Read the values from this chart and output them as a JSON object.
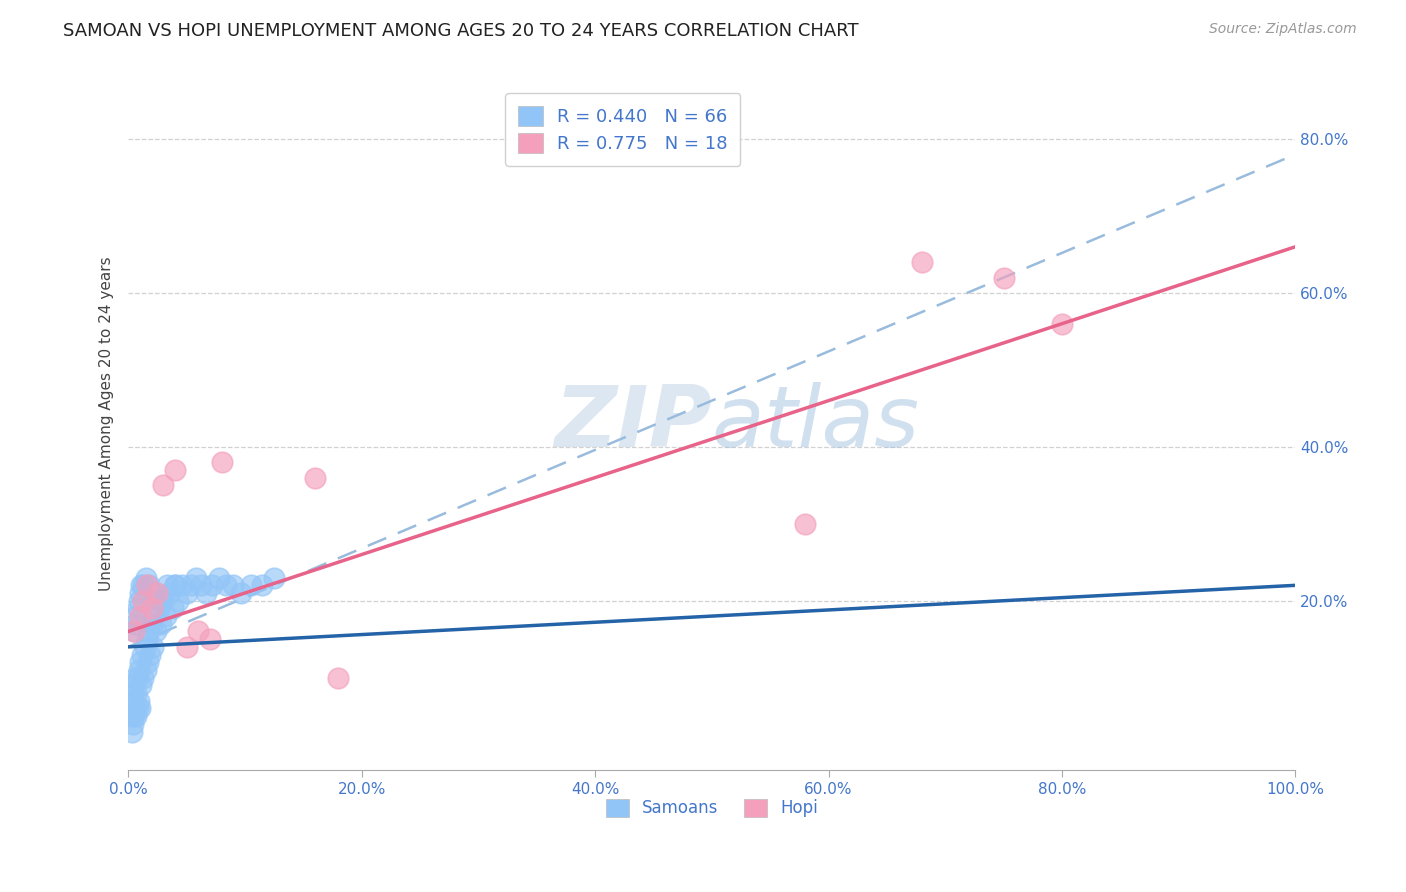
{
  "title": "SAMOAN VS HOPI UNEMPLOYMENT AMONG AGES 20 TO 24 YEARS CORRELATION CHART",
  "source": "Source: ZipAtlas.com",
  "ylabel": "Unemployment Among Ages 20 to 24 years",
  "xlim": [
    0.0,
    1.0
  ],
  "ylim": [
    -0.02,
    0.88
  ],
  "xticks": [
    0.0,
    0.2,
    0.4,
    0.6,
    0.8,
    1.0
  ],
  "xtick_labels": [
    "0.0%",
    "20.0%",
    "40.0%",
    "60.0%",
    "80.0%",
    "100.0%"
  ],
  "ytick_labels": [
    "20.0%",
    "40.0%",
    "60.0%",
    "80.0%"
  ],
  "yticks": [
    0.2,
    0.4,
    0.6,
    0.8
  ],
  "samoans_R": 0.44,
  "samoans_N": 66,
  "hopi_R": 0.775,
  "hopi_N": 18,
  "samoans_color": "#92C5F7",
  "hopi_color": "#F4A0BC",
  "samoans_line_color": "#2563A8",
  "hopi_line_color": "#E8638A",
  "dashed_line_color": "#99BBDD",
  "legend_label_color": "#4477CC",
  "watermark_color": "#C5D8EC",
  "background_color": "#FFFFFF",
  "samoans_x": [
    0.002,
    0.003,
    0.003,
    0.004,
    0.004,
    0.005,
    0.005,
    0.006,
    0.006,
    0.007,
    0.007,
    0.008,
    0.008,
    0.009,
    0.009,
    0.01,
    0.01,
    0.011,
    0.012,
    0.013,
    0.014,
    0.015,
    0.016,
    0.017,
    0.018,
    0.019,
    0.02,
    0.021,
    0.022,
    0.024,
    0.026,
    0.028,
    0.03,
    0.032,
    0.035,
    0.038,
    0.04,
    0.043,
    0.046,
    0.05,
    0.054,
    0.058,
    0.062,
    0.067,
    0.072,
    0.078,
    0.084,
    0.09,
    0.097,
    0.105,
    0.115,
    0.125,
    0.005,
    0.006,
    0.007,
    0.008,
    0.009,
    0.01,
    0.011,
    0.013,
    0.015,
    0.018,
    0.022,
    0.027,
    0.033,
    0.04
  ],
  "samoans_y": [
    0.05,
    0.03,
    0.07,
    0.04,
    0.08,
    0.05,
    0.09,
    0.06,
    0.1,
    0.05,
    0.08,
    0.06,
    0.1,
    0.07,
    0.11,
    0.06,
    0.12,
    0.09,
    0.13,
    0.1,
    0.14,
    0.11,
    0.15,
    0.12,
    0.16,
    0.13,
    0.17,
    0.14,
    0.18,
    0.16,
    0.19,
    0.17,
    0.2,
    0.18,
    0.21,
    0.19,
    0.22,
    0.2,
    0.22,
    0.21,
    0.22,
    0.23,
    0.22,
    0.21,
    0.22,
    0.23,
    0.22,
    0.22,
    0.21,
    0.22,
    0.22,
    0.23,
    0.16,
    0.17,
    0.18,
    0.19,
    0.2,
    0.21,
    0.22,
    0.22,
    0.23,
    0.22,
    0.21,
    0.2,
    0.22,
    0.22
  ],
  "hopi_x": [
    0.005,
    0.01,
    0.013,
    0.016,
    0.02,
    0.025,
    0.03,
    0.04,
    0.05,
    0.06,
    0.07,
    0.08,
    0.16,
    0.18,
    0.58,
    0.68,
    0.75,
    0.8
  ],
  "hopi_y": [
    0.16,
    0.18,
    0.2,
    0.22,
    0.19,
    0.21,
    0.35,
    0.37,
    0.14,
    0.16,
    0.15,
    0.38,
    0.36,
    0.1,
    0.3,
    0.64,
    0.62,
    0.56
  ],
  "samoans_line": [
    0.0,
    0.14,
    1.0,
    0.22
  ],
  "hopi_line": [
    0.0,
    0.16,
    1.0,
    0.66
  ],
  "dashed_line": [
    0.0,
    0.14,
    1.0,
    0.78
  ]
}
